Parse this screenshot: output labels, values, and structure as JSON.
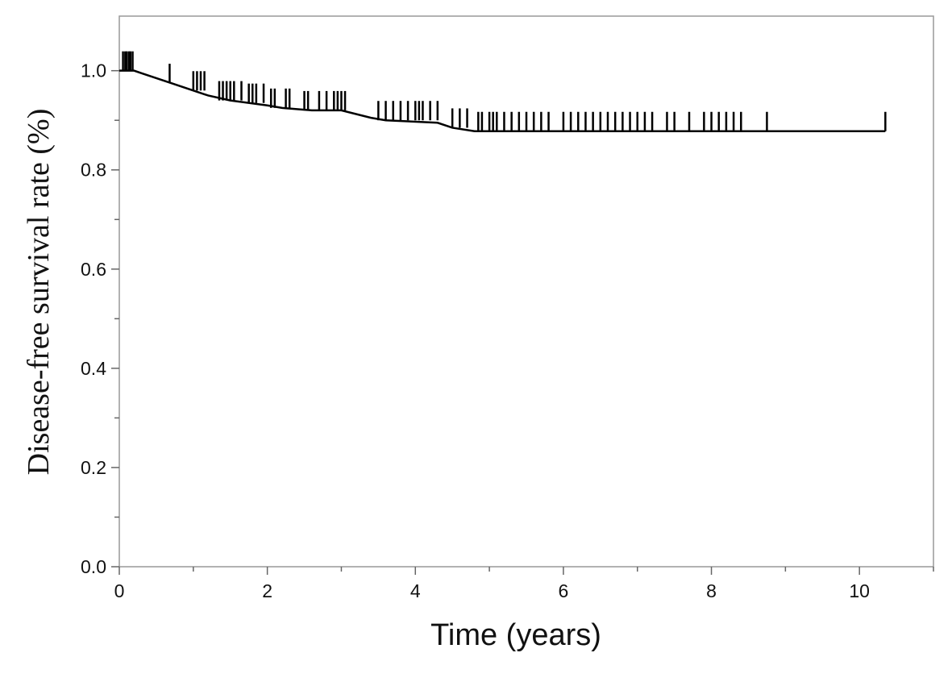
{
  "chart_data": {
    "type": "line",
    "x_label": "Time (years)",
    "y_label": "Disease-free survival rate (%)",
    "xlim": [
      0,
      11
    ],
    "xticks": [
      0,
      2,
      4,
      6,
      8,
      10
    ],
    "xminorticks": [
      1,
      3,
      5,
      7,
      9,
      11
    ],
    "ylim": [
      0,
      1.11
    ],
    "yticks": [
      {
        "value": 0,
        "label": "0.0"
      },
      0.2,
      0.4,
      0.6,
      0.8,
      {
        "value": 1,
        "label": "1.0"
      }
    ],
    "yminorticks": [
      0.1,
      0.3,
      0.5,
      0.7,
      0.9
    ],
    "grid": false,
    "series": [
      {
        "color": "#000000",
        "marker": "none",
        "x": [
          0,
          0.2,
          0.3,
          0.5,
          0.7,
          1.0,
          1.2,
          1.5,
          2.0,
          2.2,
          2.6,
          3.0,
          3.4,
          3.6,
          4.3,
          4.5,
          4.8,
          10.35
        ],
        "values": [
          1.0,
          1.0,
          0.995,
          0.985,
          0.975,
          0.96,
          0.95,
          0.94,
          0.93,
          0.925,
          0.92,
          0.92,
          0.905,
          0.9,
          0.895,
          0.885,
          0.878,
          0.878
        ]
      },
      {
        "color": "#000000",
        "marker": "tick",
        "x": [
          0.05,
          0.08,
          0.1,
          0.13,
          0.15,
          0.18,
          0.68,
          1.0,
          1.05,
          1.1,
          1.15,
          1.35,
          1.4,
          1.45,
          1.5,
          1.55,
          1.65,
          1.75,
          1.8,
          1.85,
          1.95,
          2.05,
          2.1,
          2.25,
          2.3,
          2.5,
          2.55,
          2.7,
          2.8,
          2.9,
          2.95,
          3.0,
          3.05,
          3.5,
          3.6,
          3.7,
          3.8,
          3.9,
          4.0,
          4.05,
          4.1,
          4.2,
          4.3,
          4.5,
          4.6,
          4.7,
          4.85,
          4.9,
          5.0,
          5.05,
          5.1,
          5.2,
          5.3,
          5.4,
          5.5,
          5.6,
          5.7,
          5.8,
          6.0,
          6.1,
          6.2,
          6.3,
          6.4,
          6.5,
          6.6,
          6.7,
          6.8,
          6.9,
          7.0,
          7.1,
          7.2,
          7.4,
          7.5,
          7.7,
          7.9,
          8.0,
          8.1,
          8.2,
          8.3,
          8.4,
          8.75,
          10.35
        ],
        "values": [
          1.0,
          1.0,
          1.0,
          1.0,
          1.0,
          1.0,
          0.975,
          0.96,
          0.96,
          0.96,
          0.96,
          0.94,
          0.94,
          0.94,
          0.94,
          0.94,
          0.94,
          0.935,
          0.935,
          0.935,
          0.935,
          0.925,
          0.925,
          0.925,
          0.925,
          0.92,
          0.92,
          0.92,
          0.92,
          0.92,
          0.92,
          0.92,
          0.92,
          0.9,
          0.9,
          0.9,
          0.9,
          0.9,
          0.9,
          0.9,
          0.9,
          0.9,
          0.9,
          0.885,
          0.885,
          0.885,
          0.878,
          0.878,
          0.878,
          0.878,
          0.878,
          0.878,
          0.878,
          0.878,
          0.878,
          0.878,
          0.878,
          0.878,
          0.878,
          0.878,
          0.878,
          0.878,
          0.878,
          0.878,
          0.878,
          0.878,
          0.878,
          0.878,
          0.878,
          0.878,
          0.878,
          0.878,
          0.878,
          0.878,
          0.878,
          0.878,
          0.878,
          0.878,
          0.878,
          0.878,
          0.878,
          0.878
        ]
      }
    ]
  }
}
